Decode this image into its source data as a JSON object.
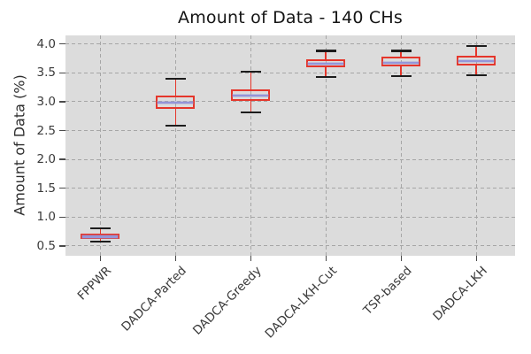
{
  "chart_data": {
    "type": "boxplot",
    "title": "Amount of Data - 140 CHs",
    "ylabel": "Amount of Data (%)",
    "xlabel": "",
    "categories": [
      "FPPWR",
      "DADCA-Parted",
      "DADCA-Greedy",
      "DADCA-LKH-Cut",
      "TSP-based",
      "DADCA-LKH"
    ],
    "series": [
      {
        "name": "FPPWR",
        "whislo": 0.57,
        "q1": 0.62,
        "med": 0.66,
        "q3": 0.71,
        "whishi": 0.81
      },
      {
        "name": "DADCA-Parted",
        "whislo": 2.59,
        "q1": 2.88,
        "med": 2.99,
        "q3": 3.1,
        "whishi": 3.4
      },
      {
        "name": "DADCA-Greedy",
        "whislo": 2.81,
        "q1": 3.02,
        "med": 3.11,
        "q3": 3.22,
        "whishi": 3.52
      },
      {
        "name": "DADCA-LKH-Cut",
        "whislo": 3.43,
        "q1": 3.6,
        "med": 3.66,
        "q3": 3.73,
        "whishi": 3.88
      },
      {
        "name": "TSP-based",
        "whislo": 3.44,
        "q1": 3.62,
        "med": 3.67,
        "q3": 3.78,
        "whishi": 3.88
      },
      {
        "name": "DADCA-LKH",
        "whislo": 3.46,
        "q1": 3.63,
        "med": 3.71,
        "q3": 3.79,
        "whishi": 3.97
      }
    ],
    "yticks": [
      0.5,
      1.0,
      1.5,
      2.0,
      2.5,
      3.0,
      3.5,
      4.0
    ],
    "ylim": [
      0.33,
      4.15
    ],
    "grid": "dashed gray, horizontal and vertical at ticks",
    "legend": "none",
    "x_tick_label_rotation_deg": 45,
    "colors": {
      "figure_background": "#ffffff",
      "plot_background": "#dcdcdc",
      "grid": "#a6a6a6",
      "box_edge": "#e5362b",
      "whisker": "#e5362b",
      "cap": "#1c1c1c",
      "median": "#9595d8",
      "tick_label": "#3a3a3a",
      "title_color": "#141414"
    }
  }
}
